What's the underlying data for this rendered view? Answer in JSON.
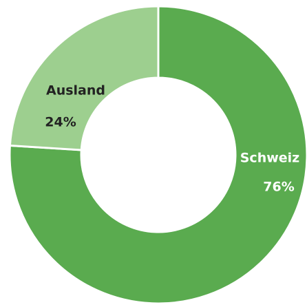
{
  "chart_data": {
    "type": "donut",
    "categories": [
      "Schweiz",
      "Ausland"
    ],
    "values": [
      76,
      24
    ],
    "value_labels": [
      "76%",
      "24%"
    ],
    "colors": [
      "#5aab4f",
      "#9dcf8f"
    ]
  }
}
